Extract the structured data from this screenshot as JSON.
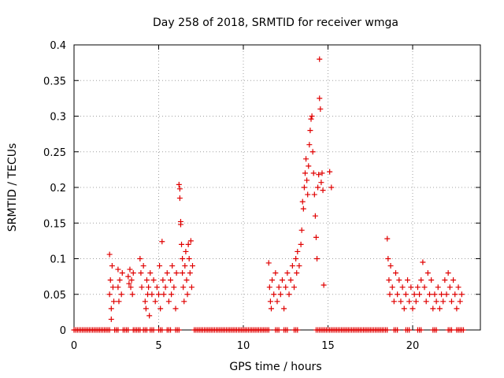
{
  "chart_data": {
    "type": "scatter",
    "title": "Day 258 of 2018, SRMTID for receiver wmga",
    "xlabel": "GPS time / hours",
    "ylabel": "SRMTID / TECUs",
    "xlim": [
      0,
      24
    ],
    "ylim": [
      0,
      0.4
    ],
    "x_ticks": [
      0,
      5,
      10,
      15,
      20
    ],
    "x_tick_labels": [
      "0",
      "5",
      "10",
      "15",
      "20"
    ],
    "y_ticks": [
      0,
      0.05,
      0.1,
      0.15,
      0.2,
      0.25,
      0.3,
      0.35,
      0.4
    ],
    "y_tick_labels": [
      "0",
      "0.05",
      "0.1",
      "0.15",
      "0.2",
      "0.25",
      "0.3",
      "0.35",
      "0.4"
    ],
    "grid": true,
    "marker": "+",
    "series": [
      {
        "name": "SRMTID",
        "color": "#e00000",
        "points": [
          [
            2.1,
            0.106
          ],
          [
            2.1,
            0.05
          ],
          [
            2.15,
            0.07
          ],
          [
            2.2,
            0.03
          ],
          [
            2.2,
            0.015
          ],
          [
            2.25,
            0.09
          ],
          [
            2.3,
            0.06
          ],
          [
            2.35,
            0.04
          ],
          [
            2.6,
            0.085
          ],
          [
            2.6,
            0.06
          ],
          [
            2.65,
            0.04
          ],
          [
            2.7,
            0.07
          ],
          [
            2.8,
            0.05
          ],
          [
            2.85,
            0.08
          ],
          [
            3.2,
            0.075
          ],
          [
            3.25,
            0.065
          ],
          [
            3.3,
            0.085
          ],
          [
            3.35,
            0.06
          ],
          [
            3.4,
            0.07
          ],
          [
            3.45,
            0.05
          ],
          [
            3.5,
            0.08
          ],
          [
            3.9,
            0.1
          ],
          [
            3.95,
            0.08
          ],
          [
            4.0,
            0.06
          ],
          [
            4.1,
            0.09
          ],
          [
            4.2,
            0.04
          ],
          [
            4.25,
            0.03
          ],
          [
            4.3,
            0.07
          ],
          [
            4.35,
            0.05
          ],
          [
            4.4,
            0.06
          ],
          [
            4.45,
            0.02
          ],
          [
            4.5,
            0.08
          ],
          [
            4.6,
            0.05
          ],
          [
            4.7,
            0.07
          ],
          [
            4.8,
            0.04
          ],
          [
            4.9,
            0.06
          ],
          [
            5.0,
            0.05
          ],
          [
            5.05,
            0.09
          ],
          [
            5.1,
            0.03
          ],
          [
            5.2,
            0.124
          ],
          [
            5.25,
            0.07
          ],
          [
            5.3,
            0.05
          ],
          [
            5.4,
            0.06
          ],
          [
            5.5,
            0.08
          ],
          [
            5.6,
            0.04
          ],
          [
            5.7,
            0.07
          ],
          [
            5.75,
            0.05
          ],
          [
            5.8,
            0.09
          ],
          [
            5.9,
            0.06
          ],
          [
            6.0,
            0.03
          ],
          [
            6.05,
            0.08
          ],
          [
            6.2,
            0.204
          ],
          [
            6.25,
            0.198
          ],
          [
            6.25,
            0.185
          ],
          [
            6.3,
            0.152
          ],
          [
            6.3,
            0.148
          ],
          [
            6.35,
            0.12
          ],
          [
            6.4,
            0.1
          ],
          [
            6.4,
            0.08
          ],
          [
            6.45,
            0.06
          ],
          [
            6.5,
            0.04
          ],
          [
            6.55,
            0.09
          ],
          [
            6.6,
            0.11
          ],
          [
            6.65,
            0.07
          ],
          [
            6.7,
            0.05
          ],
          [
            6.75,
            0.12
          ],
          [
            6.8,
            0.1
          ],
          [
            6.85,
            0.08
          ],
          [
            6.9,
            0.125
          ],
          [
            6.95,
            0.06
          ],
          [
            7.0,
            0.09
          ],
          [
            11.5,
            0.094
          ],
          [
            11.55,
            0.06
          ],
          [
            11.6,
            0.04
          ],
          [
            11.65,
            0.03
          ],
          [
            11.7,
            0.07
          ],
          [
            11.8,
            0.05
          ],
          [
            11.9,
            0.08
          ],
          [
            12.0,
            0.04
          ],
          [
            12.1,
            0.06
          ],
          [
            12.2,
            0.05
          ],
          [
            12.3,
            0.07
          ],
          [
            12.4,
            0.03
          ],
          [
            12.5,
            0.06
          ],
          [
            12.6,
            0.08
          ],
          [
            12.7,
            0.05
          ],
          [
            12.8,
            0.07
          ],
          [
            12.9,
            0.09
          ],
          [
            13.0,
            0.06
          ],
          [
            13.1,
            0.1
          ],
          [
            13.15,
            0.08
          ],
          [
            13.2,
            0.11
          ],
          [
            13.3,
            0.09
          ],
          [
            13.4,
            0.12
          ],
          [
            13.45,
            0.14
          ],
          [
            13.5,
            0.18
          ],
          [
            13.55,
            0.17
          ],
          [
            13.6,
            0.2
          ],
          [
            13.65,
            0.22
          ],
          [
            13.7,
            0.24
          ],
          [
            13.75,
            0.21
          ],
          [
            13.8,
            0.19
          ],
          [
            13.85,
            0.23
          ],
          [
            13.9,
            0.26
          ],
          [
            13.95,
            0.28
          ],
          [
            14.0,
            0.296
          ],
          [
            14.05,
            0.3
          ],
          [
            14.1,
            0.25
          ],
          [
            14.15,
            0.22
          ],
          [
            14.2,
            0.19
          ],
          [
            14.25,
            0.16
          ],
          [
            14.3,
            0.13
          ],
          [
            14.35,
            0.1
          ],
          [
            14.4,
            0.2
          ],
          [
            14.45,
            0.218
          ],
          [
            14.5,
            0.38
          ],
          [
            14.5,
            0.325
          ],
          [
            14.55,
            0.31
          ],
          [
            14.6,
            0.207
          ],
          [
            14.65,
            0.22
          ],
          [
            14.7,
            0.196
          ],
          [
            14.75,
            0.063
          ],
          [
            15.1,
            0.222
          ],
          [
            15.2,
            0.2
          ],
          [
            18.5,
            0.128
          ],
          [
            18.55,
            0.1
          ],
          [
            18.6,
            0.07
          ],
          [
            18.65,
            0.05
          ],
          [
            18.7,
            0.09
          ],
          [
            18.8,
            0.06
          ],
          [
            18.9,
            0.04
          ],
          [
            19.0,
            0.08
          ],
          [
            19.1,
            0.05
          ],
          [
            19.2,
            0.07
          ],
          [
            19.3,
            0.04
          ],
          [
            19.4,
            0.06
          ],
          [
            19.5,
            0.03
          ],
          [
            19.6,
            0.05
          ],
          [
            19.7,
            0.07
          ],
          [
            19.8,
            0.04
          ],
          [
            19.9,
            0.06
          ],
          [
            20.0,
            0.03
          ],
          [
            20.1,
            0.05
          ],
          [
            20.2,
            0.04
          ],
          [
            20.3,
            0.06
          ],
          [
            20.4,
            0.05
          ],
          [
            20.5,
            0.07
          ],
          [
            20.6,
            0.095
          ],
          [
            20.7,
            0.06
          ],
          [
            20.8,
            0.04
          ],
          [
            20.9,
            0.08
          ],
          [
            21.0,
            0.05
          ],
          [
            21.1,
            0.07
          ],
          [
            21.2,
            0.03
          ],
          [
            21.3,
            0.05
          ],
          [
            21.4,
            0.04
          ],
          [
            21.5,
            0.06
          ],
          [
            21.6,
            0.03
          ],
          [
            21.7,
            0.05
          ],
          [
            21.8,
            0.04
          ],
          [
            21.9,
            0.07
          ],
          [
            22.0,
            0.05
          ],
          [
            22.1,
            0.08
          ],
          [
            22.2,
            0.06
          ],
          [
            22.3,
            0.04
          ],
          [
            22.4,
            0.07
          ],
          [
            22.5,
            0.05
          ],
          [
            22.6,
            0.03
          ],
          [
            22.7,
            0.06
          ],
          [
            22.8,
            0.04
          ],
          [
            22.9,
            0.05
          ]
        ],
        "zero_runs": [
          [
            0.0,
            2.1
          ],
          [
            2.4,
            2.6
          ],
          [
            2.9,
            3.2
          ],
          [
            3.5,
            3.9
          ],
          [
            4.1,
            4.3
          ],
          [
            4.5,
            4.7
          ],
          [
            5.0,
            5.2
          ],
          [
            5.5,
            5.7
          ],
          [
            6.0,
            6.2
          ],
          [
            7.1,
            11.5
          ],
          [
            11.9,
            12.1
          ],
          [
            12.4,
            12.6
          ],
          [
            13.0,
            13.2
          ],
          [
            14.3,
            18.5
          ],
          [
            18.9,
            19.1
          ],
          [
            19.6,
            19.8
          ],
          [
            20.3,
            20.5
          ],
          [
            21.2,
            21.4
          ],
          [
            22.1,
            22.3
          ],
          [
            22.6,
            23.0
          ]
        ]
      }
    ]
  }
}
